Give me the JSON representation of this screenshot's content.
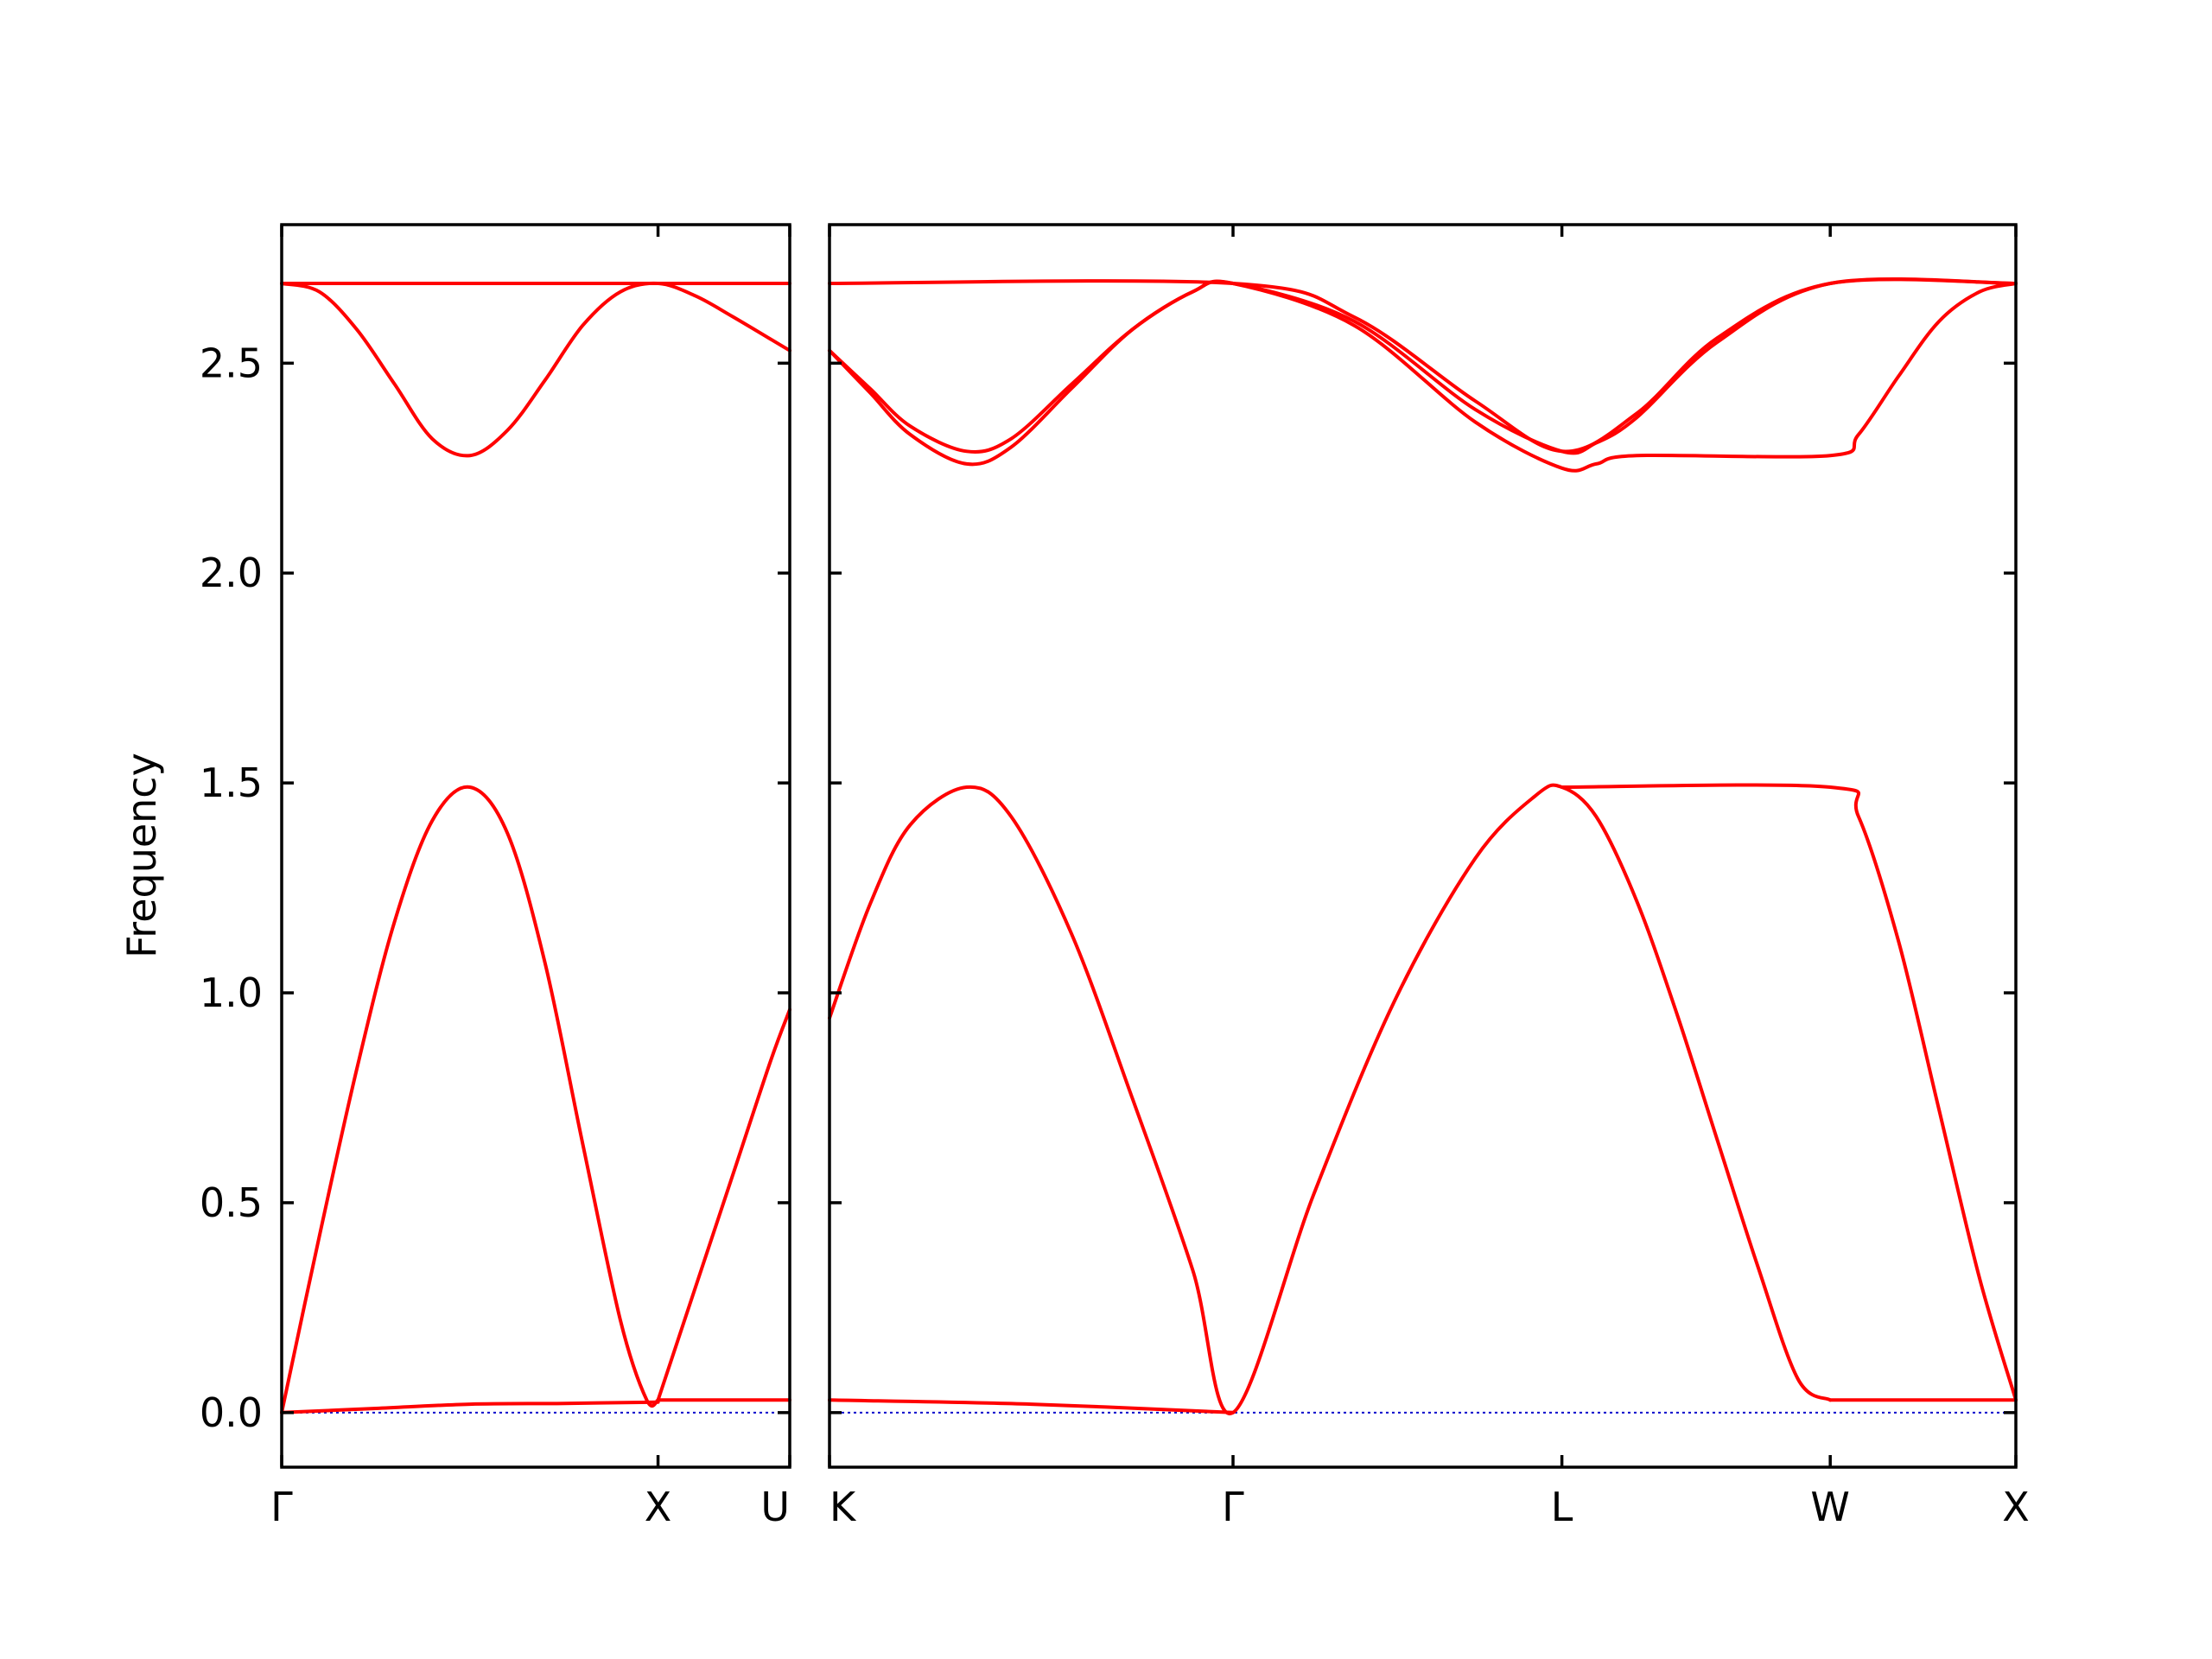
{
  "chart_data": {
    "type": "line",
    "title": "",
    "xlabel": "",
    "ylabel": "Frequency",
    "ylim": [
      -0.13,
      2.83
    ],
    "yticks": [
      "0.0",
      "0.5",
      "1.0",
      "1.5",
      "2.0",
      "2.5"
    ],
    "ytick_values": [
      0.0,
      0.5,
      1.0,
      1.5,
      2.0,
      2.5
    ],
    "band_color": "#ff0000",
    "zero_line_color": "#0000cc",
    "grid": false,
    "legend": "none",
    "panels": [
      {
        "name": "panel-1",
        "xlim": [
          0,
          1.35
        ],
        "xticks": [
          {
            "label": "Γ",
            "value": 0
          },
          {
            "label": "X",
            "value": 1.0
          },
          {
            "label": "U",
            "value": 1.35
          }
        ],
        "series": [
          {
            "x": [
              0,
              1.0,
              1.35
            ],
            "y": [
              2.69,
              2.69,
              2.69
            ]
          },
          {
            "x": [
              0,
              0.1,
              0.2,
              0.3,
              0.4,
              0.5,
              0.6,
              0.7,
              0.8,
              0.9,
              1.0,
              1.1,
              1.2,
              1.35
            ],
            "y": [
              2.69,
              2.67,
              2.58,
              2.45,
              2.32,
              2.28,
              2.34,
              2.46,
              2.59,
              2.67,
              2.69,
              2.66,
              2.61,
              2.53
            ]
          },
          {
            "x": [
              0,
              0.1,
              0.2,
              0.3,
              0.4,
              0.5,
              0.6,
              0.7,
              0.8,
              0.9,
              0.97,
              1.0
            ],
            "y": [
              0.0,
              0.42,
              0.82,
              1.17,
              1.41,
              1.49,
              1.38,
              1.07,
              0.64,
              0.22,
              0.03,
              0.03
            ]
          },
          {
            "x": [
              0,
              0.25,
              0.5,
              0.75,
              1.0
            ],
            "y": [
              0.0,
              0.01,
              0.02,
              0.022,
              0.025
            ]
          },
          {
            "x": [
              1.0,
              1.1,
              1.2,
              1.3,
              1.35
            ],
            "y": [
              0.03,
              0.3,
              0.57,
              0.84,
              0.96
            ]
          },
          {
            "x": [
              1.0,
              1.35
            ],
            "y": [
              0.03,
              0.03
            ]
          }
        ]
      },
      {
        "name": "panel-2",
        "xlim": [
          0,
          2.94
        ],
        "xticks": [
          {
            "label": "K",
            "value": 0
          },
          {
            "label": "Γ",
            "value": 1.0
          },
          {
            "label": "L",
            "value": 1.815
          },
          {
            "label": "W",
            "value": 2.48
          },
          {
            "label": "X",
            "value": 2.94
          }
        ],
        "series": [
          {
            "x": [
              0,
              1.0,
              1.3,
              1.6,
              1.815,
              2.0,
              2.2,
              2.48,
              2.94
            ],
            "y": [
              2.69,
              2.69,
              2.61,
              2.41,
              2.29,
              2.38,
              2.56,
              2.69,
              2.69
            ]
          },
          {
            "x": [
              0,
              0.1,
              0.2,
              0.34,
              0.45,
              0.6,
              0.75,
              0.9,
              1.0,
              1.3,
              1.6,
              1.815,
              1.9,
              2.0,
              2.2,
              2.48,
              2.94
            ],
            "y": [
              2.53,
              2.44,
              2.35,
              2.29,
              2.32,
              2.45,
              2.58,
              2.67,
              2.69,
              2.6,
              2.39,
              2.29,
              2.31,
              2.37,
              2.55,
              2.69,
              2.69
            ]
          },
          {
            "x": [
              0,
              0.1,
              0.2,
              0.34,
              0.45,
              0.6,
              0.75,
              0.9,
              1.0,
              1.3,
              1.6,
              1.815,
              1.9,
              2.0,
              2.48,
              2.55,
              2.65,
              2.75,
              2.85,
              2.94
            ],
            "y": [
              2.53,
              2.43,
              2.33,
              2.26,
              2.3,
              2.44,
              2.58,
              2.67,
              2.69,
              2.59,
              2.36,
              2.25,
              2.26,
              2.28,
              2.28,
              2.33,
              2.47,
              2.6,
              2.67,
              2.69
            ]
          },
          {
            "x": [
              0,
              0.1,
              0.2,
              0.34,
              0.45,
              0.6,
              0.75,
              0.9,
              1.0,
              1.2,
              1.4,
              1.6,
              1.75,
              1.815,
              1.9,
              2.0,
              2.1,
              2.2,
              2.3,
              2.4,
              2.48
            ],
            "y": [
              0.94,
              1.21,
              1.4,
              1.49,
              1.42,
              1.14,
              0.75,
              0.34,
              0.0,
              0.52,
              0.98,
              1.32,
              1.47,
              1.49,
              1.42,
              1.22,
              0.95,
              0.65,
              0.35,
              0.08,
              0.03
            ]
          },
          {
            "x": [
              1.815,
              2.48,
              2.55,
              2.65,
              2.75,
              2.85,
              2.94
            ],
            "y": [
              1.49,
              1.49,
              1.42,
              1.12,
              0.72,
              0.32,
              0.03
            ]
          },
          {
            "x": [
              0,
              0.5,
              1.0
            ],
            "y": [
              0.03,
              0.02,
              0.0
            ]
          },
          {
            "x": [
              2.48,
              2.94
            ],
            "y": [
              0.03,
              0.03
            ]
          }
        ]
      }
    ]
  }
}
